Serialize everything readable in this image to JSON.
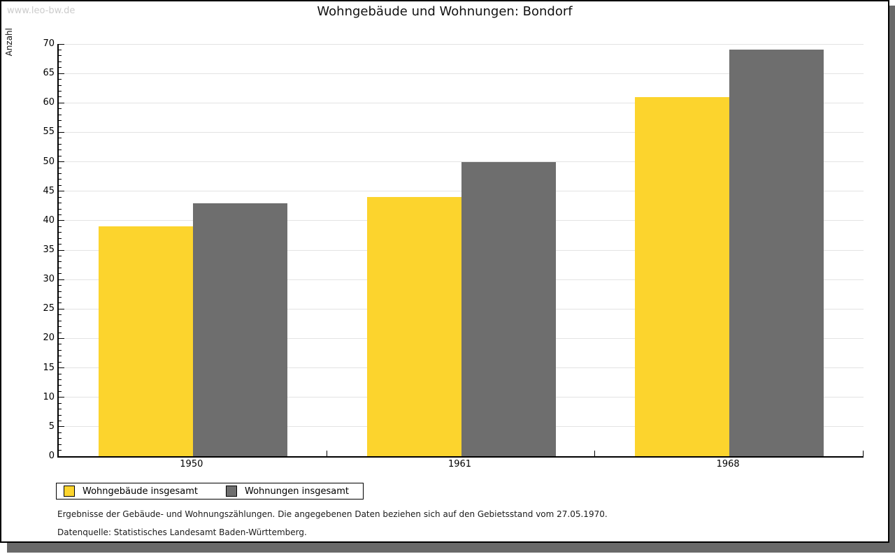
{
  "watermark": "www.leo-bw.de",
  "title": "Wohngebäude und Wohnungen: Bondorf",
  "chart_data": {
    "type": "bar",
    "title": "Wohngebäude und Wohnungen: Bondorf",
    "categories": [
      "1950",
      "1961",
      "1968"
    ],
    "series": [
      {
        "name": "Wohngebäude insgesamt",
        "color": "#FCD42D",
        "values": [
          39,
          44,
          61
        ]
      },
      {
        "name": "Wohnungen insgesamt",
        "color": "#6E6E6E",
        "values": [
          43,
          50,
          69
        ]
      }
    ],
    "xlabel": "",
    "ylabel": "Anzahl",
    "ylim": [
      0,
      70
    ],
    "ytick_step": 5,
    "minor_tick_step": 1,
    "grid": true,
    "gridline_color": "#e3e3e3",
    "legend_position": "bottom-left"
  },
  "footnotes": [
    "Ergebnisse der Gebäude- und Wohnungszählungen. Die angegebenen Daten beziehen sich auf den Gebietsstand vom 27.05.1970.",
    "Datenquelle: Statistisches Landesamt Baden-Württemberg."
  ]
}
